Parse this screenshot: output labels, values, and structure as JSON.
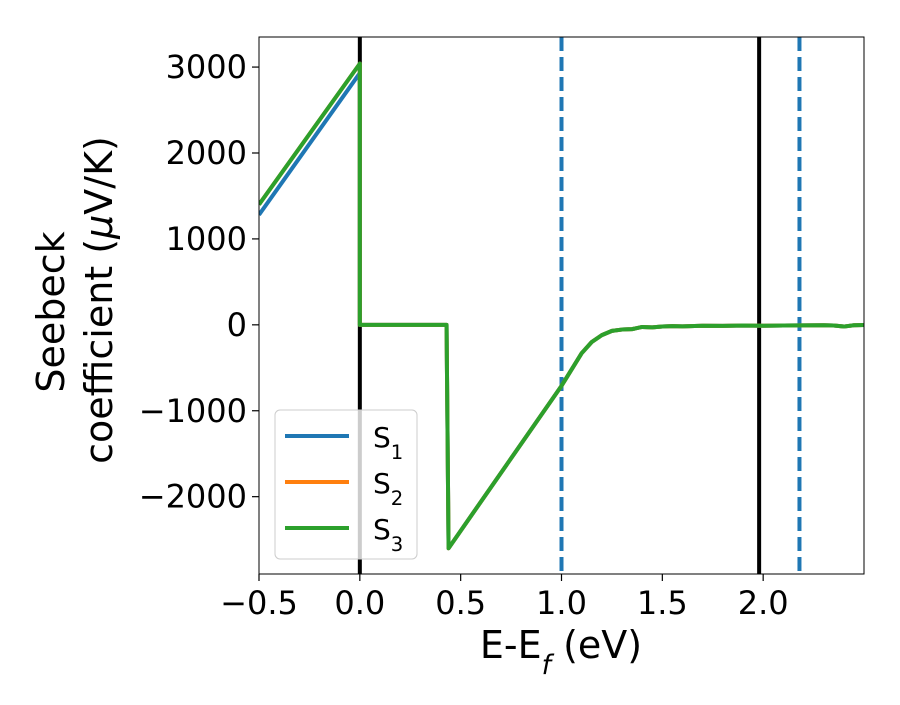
{
  "chart_data": {
    "type": "line",
    "title": "",
    "xlabel": "E-E$_f$ (eV)",
    "ylabel_line1": "Seebeck",
    "ylabel_line2": "coefficient  ($\\mu$V/K)",
    "xlim": [
      -0.5,
      2.5
    ],
    "ylim": [
      -2900,
      3350
    ],
    "xticks": [
      {
        "value": -0.5,
        "label": "−0.5"
      },
      {
        "value": 0.0,
        "label": "0.0"
      },
      {
        "value": 0.5,
        "label": "0.5"
      },
      {
        "value": 1.0,
        "label": "1.0"
      },
      {
        "value": 1.5,
        "label": "1.5"
      },
      {
        "value": 2.0,
        "label": "2.0"
      }
    ],
    "yticks": [
      {
        "value": 3000,
        "label": "3000"
      },
      {
        "value": 2000,
        "label": "2000"
      },
      {
        "value": 1000,
        "label": "1000"
      },
      {
        "value": 0,
        "label": "0"
      },
      {
        "value": -1000,
        "label": "−1000"
      },
      {
        "value": -2000,
        "label": "−2000"
      }
    ],
    "grid": false,
    "legend_position": "lower-left",
    "vlines": [
      {
        "x": 0.0,
        "color": "#000000",
        "style": "solid"
      },
      {
        "x": 1.98,
        "color": "#000000",
        "style": "solid"
      },
      {
        "x": 1.0,
        "color": "#1f77b4",
        "style": "dashed"
      },
      {
        "x": 2.18,
        "color": "#1f77b4",
        "style": "dashed"
      }
    ],
    "series": [
      {
        "name": "S1",
        "legend_base": "S",
        "legend_sub": "1",
        "color": "#1f77b4",
        "points": [
          [
            -0.5,
            1280
          ],
          [
            0.0,
            2930
          ],
          [
            0.0,
            0
          ],
          [
            0.43,
            0
          ],
          [
            0.44,
            -2600
          ],
          [
            1.0,
            -710
          ],
          [
            1.1,
            -330
          ],
          [
            1.15,
            -200
          ],
          [
            1.2,
            -120
          ],
          [
            1.25,
            -70
          ],
          [
            1.3,
            -55
          ],
          [
            1.35,
            -50
          ],
          [
            1.4,
            -25
          ],
          [
            1.45,
            -30
          ],
          [
            1.5,
            -20
          ],
          [
            1.55,
            -15
          ],
          [
            1.6,
            -18
          ],
          [
            1.7,
            -10
          ],
          [
            1.8,
            -12
          ],
          [
            1.9,
            -8
          ],
          [
            2.0,
            -10
          ],
          [
            2.1,
            -8
          ],
          [
            2.2,
            -6
          ],
          [
            2.3,
            -5
          ],
          [
            2.35,
            -8
          ],
          [
            2.4,
            -20
          ],
          [
            2.45,
            -5
          ],
          [
            2.5,
            -2
          ]
        ]
      },
      {
        "name": "S2",
        "legend_base": "S",
        "legend_sub": "2",
        "color": "#ff7f0e",
        "points": [
          [
            -0.5,
            1400
          ],
          [
            0.0,
            3040
          ],
          [
            0.0,
            0
          ],
          [
            0.43,
            0
          ],
          [
            0.44,
            -2600
          ],
          [
            1.0,
            -710
          ],
          [
            1.1,
            -330
          ],
          [
            1.15,
            -200
          ],
          [
            1.2,
            -120
          ],
          [
            1.25,
            -70
          ],
          [
            1.3,
            -55
          ],
          [
            1.35,
            -50
          ],
          [
            1.4,
            -25
          ],
          [
            1.45,
            -30
          ],
          [
            1.5,
            -20
          ],
          [
            1.55,
            -15
          ],
          [
            1.6,
            -18
          ],
          [
            1.7,
            -10
          ],
          [
            1.8,
            -12
          ],
          [
            1.9,
            -8
          ],
          [
            2.0,
            -10
          ],
          [
            2.1,
            -8
          ],
          [
            2.2,
            -6
          ],
          [
            2.3,
            -5
          ],
          [
            2.35,
            -8
          ],
          [
            2.4,
            -20
          ],
          [
            2.45,
            -5
          ],
          [
            2.5,
            -2
          ]
        ]
      },
      {
        "name": "S3",
        "legend_base": "S",
        "legend_sub": "3",
        "color": "#2ca02c",
        "points": [
          [
            -0.5,
            1400
          ],
          [
            0.0,
            3040
          ],
          [
            0.0,
            0
          ],
          [
            0.43,
            0
          ],
          [
            0.44,
            -2600
          ],
          [
            1.0,
            -710
          ],
          [
            1.1,
            -330
          ],
          [
            1.15,
            -200
          ],
          [
            1.2,
            -120
          ],
          [
            1.25,
            -70
          ],
          [
            1.3,
            -55
          ],
          [
            1.35,
            -50
          ],
          [
            1.4,
            -25
          ],
          [
            1.45,
            -30
          ],
          [
            1.5,
            -20
          ],
          [
            1.55,
            -15
          ],
          [
            1.6,
            -18
          ],
          [
            1.7,
            -10
          ],
          [
            1.8,
            -12
          ],
          [
            1.9,
            -8
          ],
          [
            2.0,
            -10
          ],
          [
            2.1,
            -8
          ],
          [
            2.2,
            -6
          ],
          [
            2.3,
            -5
          ],
          [
            2.35,
            -8
          ],
          [
            2.4,
            -20
          ],
          [
            2.45,
            -5
          ],
          [
            2.5,
            -2
          ]
        ]
      }
    ]
  }
}
